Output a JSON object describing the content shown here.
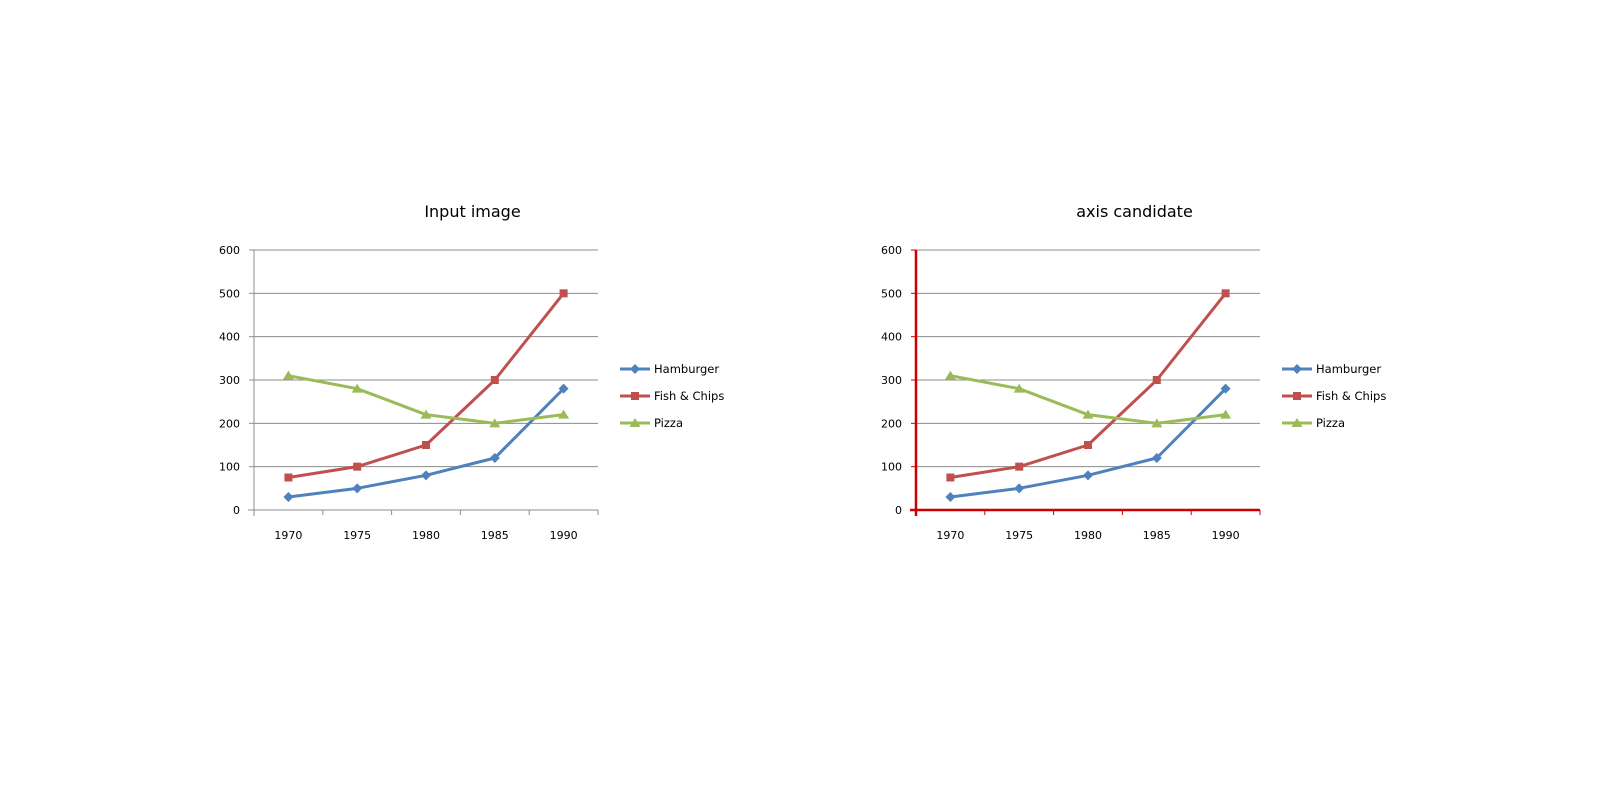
{
  "chart_data": [
    {
      "type": "line",
      "title": "Input image",
      "xlabel": "",
      "ylabel": "",
      "categories": [
        "1970",
        "1975",
        "1980",
        "1985",
        "1990"
      ],
      "yticks": [
        "0",
        "100",
        "200",
        "300",
        "400",
        "500",
        "600"
      ],
      "ylim": [
        0,
        600
      ],
      "grid": true,
      "legend_position": "right",
      "axis_highlight": false,
      "series": [
        {
          "name": "Hamburger",
          "values": [
            30,
            50,
            80,
            120,
            280
          ],
          "color": "#4f81bd",
          "marker": "diamond"
        },
        {
          "name": "Fish & Chips",
          "values": [
            75,
            100,
            150,
            300,
            500
          ],
          "color": "#c0504d",
          "marker": "square"
        },
        {
          "name": "Pizza",
          "values": [
            310,
            280,
            220,
            200,
            220
          ],
          "color": "#9bbb59",
          "marker": "triangle"
        }
      ]
    },
    {
      "type": "line",
      "title": "axis candidate",
      "xlabel": "",
      "ylabel": "",
      "categories": [
        "1970",
        "1975",
        "1980",
        "1985",
        "1990"
      ],
      "yticks": [
        "0",
        "100",
        "200",
        "300",
        "400",
        "500",
        "600"
      ],
      "ylim": [
        0,
        600
      ],
      "grid": true,
      "legend_position": "right",
      "axis_highlight": true,
      "axis_highlight_color": "#cc0000",
      "series": [
        {
          "name": "Hamburger",
          "values": [
            30,
            50,
            80,
            120,
            280
          ],
          "color": "#4f81bd",
          "marker": "diamond"
        },
        {
          "name": "Fish & Chips",
          "values": [
            75,
            100,
            150,
            300,
            500
          ],
          "color": "#c0504d",
          "marker": "square"
        },
        {
          "name": "Pizza",
          "values": [
            310,
            280,
            220,
            200,
            220
          ],
          "color": "#9bbb59",
          "marker": "triangle"
        }
      ]
    }
  ]
}
